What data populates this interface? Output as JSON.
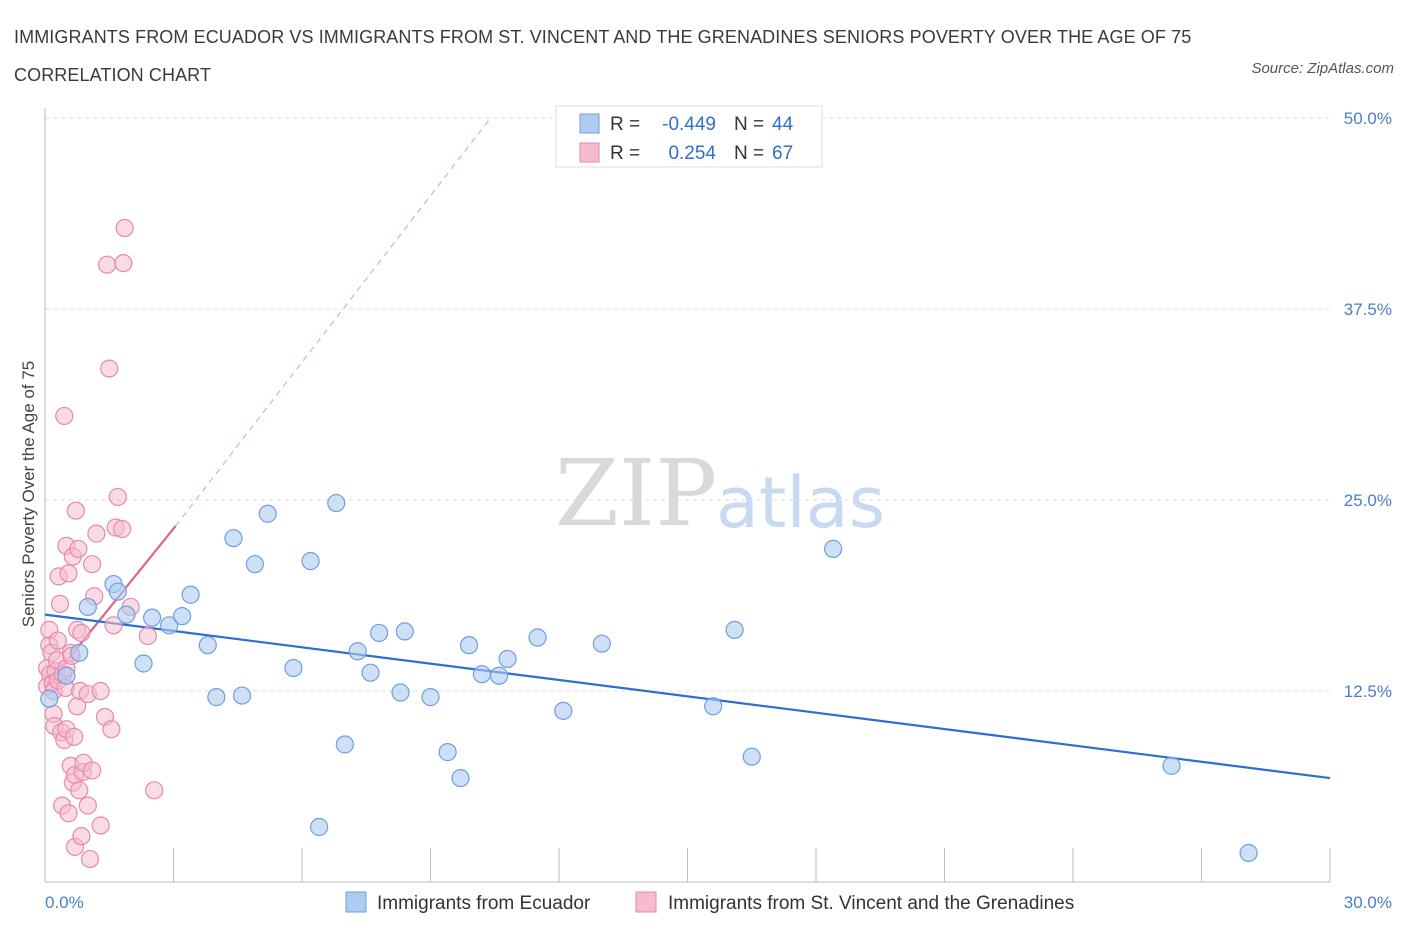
{
  "header": {
    "title": "IMMIGRANTS FROM ECUADOR VS IMMIGRANTS FROM ST. VINCENT AND THE GRENADINES SENIORS POVERTY OVER THE AGE OF 75 CORRELATION CHART",
    "source": "Source: ZipAtlas.com"
  },
  "watermark": {
    "zip": "ZIP",
    "atlas": "atlas"
  },
  "legend": {
    "r_label": "R =",
    "n_label": "N =",
    "series1": {
      "r": "-0.449",
      "n": "44"
    },
    "series2": {
      "r": "0.254",
      "n": "67"
    }
  },
  "colors": {
    "blue_fill": "#aecbf0",
    "blue_stroke": "#6f9fdc",
    "blue_line": "#2a6fd1",
    "pink_fill": "#f5bcd0",
    "pink_stroke": "#e58aaa",
    "pink_line": "#e0628f",
    "tick": "#4a7ec9"
  },
  "chart_data": {
    "type": "scatter",
    "title": "IMMIGRANTS FROM ECUADOR VS IMMIGRANTS FROM ST. VINCENT AND THE GRENADINES SENIORS POVERTY OVER THE AGE OF 75 CORRELATION CHART",
    "xlabel": "",
    "ylabel": "Seniors Poverty Over the Age of 75",
    "xlim": [
      0,
      30
    ],
    "ylim": [
      0,
      50
    ],
    "x_tick_labels": [
      "0.0%",
      "30.0%"
    ],
    "y_ticks": [
      12.5,
      25,
      37.5,
      50
    ],
    "y_tick_labels": [
      "12.5%",
      "25.0%",
      "37.5%",
      "50.0%"
    ],
    "grid": true,
    "legend_position": "top-center",
    "series": [
      {
        "name": "Immigrants from Ecuador",
        "color": "#aecbf0",
        "r": -0.449,
        "n": 44,
        "trend": {
          "x": [
            0,
            30
          ],
          "y": [
            17.5,
            6.8
          ]
        },
        "points": [
          [
            0.1,
            12.0
          ],
          [
            0.5,
            13.5
          ],
          [
            0.8,
            15.0
          ],
          [
            1.0,
            18.0
          ],
          [
            1.6,
            19.5
          ],
          [
            1.7,
            19.0
          ],
          [
            1.9,
            17.5
          ],
          [
            2.3,
            14.3
          ],
          [
            2.5,
            17.3
          ],
          [
            2.9,
            16.8
          ],
          [
            3.2,
            17.4
          ],
          [
            3.4,
            18.8
          ],
          [
            3.8,
            15.5
          ],
          [
            4.0,
            12.1
          ],
          [
            4.4,
            22.5
          ],
          [
            4.6,
            12.2
          ],
          [
            4.9,
            20.8
          ],
          [
            5.2,
            24.1
          ],
          [
            5.8,
            14.0
          ],
          [
            6.2,
            21.0
          ],
          [
            6.4,
            3.6
          ],
          [
            6.8,
            24.8
          ],
          [
            7.0,
            9.0
          ],
          [
            7.3,
            15.1
          ],
          [
            7.6,
            13.7
          ],
          [
            7.8,
            16.3
          ],
          [
            8.3,
            12.4
          ],
          [
            8.4,
            16.4
          ],
          [
            9.0,
            12.1
          ],
          [
            9.4,
            8.5
          ],
          [
            9.7,
            6.8
          ],
          [
            9.9,
            15.5
          ],
          [
            10.2,
            13.6
          ],
          [
            10.6,
            13.5
          ],
          [
            10.8,
            14.6
          ],
          [
            11.5,
            16.0
          ],
          [
            12.1,
            11.2
          ],
          [
            13.0,
            15.6
          ],
          [
            15.6,
            11.5
          ],
          [
            16.1,
            16.5
          ],
          [
            16.5,
            8.2
          ],
          [
            18.4,
            21.8
          ],
          [
            26.3,
            7.6
          ],
          [
            28.1,
            1.9
          ]
        ]
      },
      {
        "name": "Immigrants from St. Vincent and the Grenadines",
        "color": "#f5bcd0",
        "r": 0.254,
        "n": 67,
        "trend": {
          "x": [
            0,
            3.05
          ],
          "y": [
            12.7,
            23.3
          ]
        },
        "trend_extended": {
          "x": [
            3.05,
            10.4
          ],
          "y": [
            23.3,
            50.0
          ]
        },
        "points": [
          [
            0.05,
            12.8
          ],
          [
            0.05,
            14.0
          ],
          [
            0.1,
            15.5
          ],
          [
            0.1,
            16.5
          ],
          [
            0.12,
            13.6
          ],
          [
            0.15,
            15.0
          ],
          [
            0.18,
            13.0
          ],
          [
            0.2,
            11.0
          ],
          [
            0.2,
            12.5
          ],
          [
            0.22,
            10.2
          ],
          [
            0.25,
            13.8
          ],
          [
            0.28,
            14.5
          ],
          [
            0.3,
            13.2
          ],
          [
            0.3,
            15.8
          ],
          [
            0.32,
            20.0
          ],
          [
            0.35,
            18.2
          ],
          [
            0.38,
            9.8
          ],
          [
            0.4,
            5.0
          ],
          [
            0.42,
            13.6
          ],
          [
            0.45,
            30.5
          ],
          [
            0.45,
            9.3
          ],
          [
            0.48,
            12.7
          ],
          [
            0.5,
            14.0
          ],
          [
            0.5,
            10.0
          ],
          [
            0.5,
            22.0
          ],
          [
            0.55,
            20.2
          ],
          [
            0.55,
            4.5
          ],
          [
            0.6,
            15.0
          ],
          [
            0.6,
            7.6
          ],
          [
            0.62,
            14.8
          ],
          [
            0.65,
            21.3
          ],
          [
            0.65,
            6.5
          ],
          [
            0.68,
            9.5
          ],
          [
            0.7,
            7.0
          ],
          [
            0.7,
            2.3
          ],
          [
            0.72,
            24.3
          ],
          [
            0.75,
            11.5
          ],
          [
            0.75,
            16.5
          ],
          [
            0.78,
            21.8
          ],
          [
            0.8,
            6.0
          ],
          [
            0.82,
            12.5
          ],
          [
            0.85,
            16.3
          ],
          [
            0.85,
            3.0
          ],
          [
            0.88,
            7.2
          ],
          [
            0.9,
            7.8
          ],
          [
            1.0,
            5.0
          ],
          [
            1.0,
            12.3
          ],
          [
            1.05,
            1.5
          ],
          [
            1.1,
            7.3
          ],
          [
            1.1,
            20.8
          ],
          [
            1.15,
            18.7
          ],
          [
            1.2,
            22.8
          ],
          [
            1.3,
            3.7
          ],
          [
            1.3,
            12.5
          ],
          [
            1.4,
            10.8
          ],
          [
            1.45,
            40.4
          ],
          [
            1.5,
            33.6
          ],
          [
            1.55,
            10.0
          ],
          [
            1.6,
            16.8
          ],
          [
            1.65,
            23.2
          ],
          [
            1.7,
            25.2
          ],
          [
            1.8,
            23.1
          ],
          [
            1.83,
            40.5
          ],
          [
            1.86,
            42.8
          ],
          [
            2.0,
            18.0
          ],
          [
            2.4,
            16.1
          ],
          [
            2.55,
            6.0
          ]
        ]
      }
    ]
  }
}
